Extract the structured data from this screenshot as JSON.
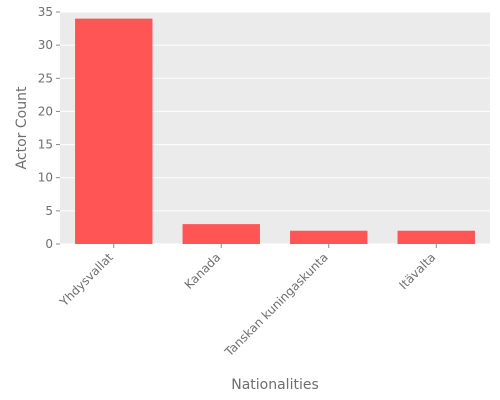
{
  "chart_data": {
    "type": "bar",
    "title": "",
    "categories": [
      "Yhdysvallat",
      "Kanada",
      "Tanskan kuningaskunta",
      "Itävalta"
    ],
    "values": [
      34,
      3,
      2,
      2
    ],
    "xlabel": "Nationalities",
    "ylabel": "Actor Count",
    "ylim": [
      0,
      35
    ],
    "yticks": [
      0,
      5,
      10,
      15,
      20,
      25,
      30,
      35
    ],
    "grid": true,
    "bar_color": "#ff5555",
    "background_color": "#ebebeb",
    "grid_color": "#ffffff",
    "text_color": "#6e6e6e"
  }
}
